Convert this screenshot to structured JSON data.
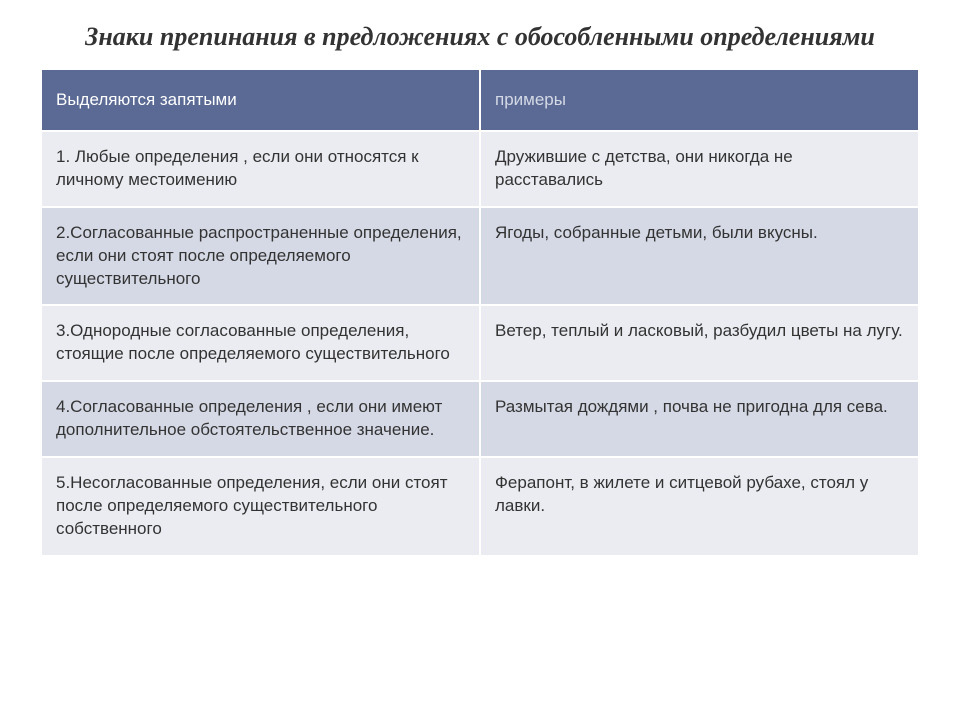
{
  "title": "Знаки препинания в предложениях с обособленными определениями",
  "table": {
    "columns": [
      "Выделяются запятыми",
      "примеры"
    ],
    "rows": [
      [
        "1. Любые определения , если они относятся к личному местоимению",
        "Дружившие с детства, они никогда не расставались"
      ],
      [
        "2.Согласованные распространенные определения, если они стоят после определяемого существительного",
        "Ягоды, собранные детьми, были вкусны."
      ],
      [
        "3.Однородные согласованные определения, стоящие после определяемого существительного",
        "Ветер, теплый и ласковый, разбудил цветы на лугу."
      ],
      [
        "4.Согласованные определения , если они имеют дополнительное обстоятельственное значение.",
        "Размытая дождями , почва не пригодна для сева."
      ],
      [
        "5.Несогласованные определения, если они стоят после определяемого существительного собственного",
        "Ферапонт, в жилете и ситцевой рубахе, стоял у лавки."
      ]
    ]
  },
  "colors": {
    "header_bg": "#5a6a94",
    "row_odd_bg": "#eaecf2",
    "row_even_bg": "#d5d9e5",
    "text": "#333333",
    "header_text": "#ffffff"
  },
  "typography": {
    "title_family": "Times New Roman",
    "title_size_pt": 26,
    "title_style": "italic bold",
    "cell_family": "Arial",
    "cell_size_pt": 17
  }
}
